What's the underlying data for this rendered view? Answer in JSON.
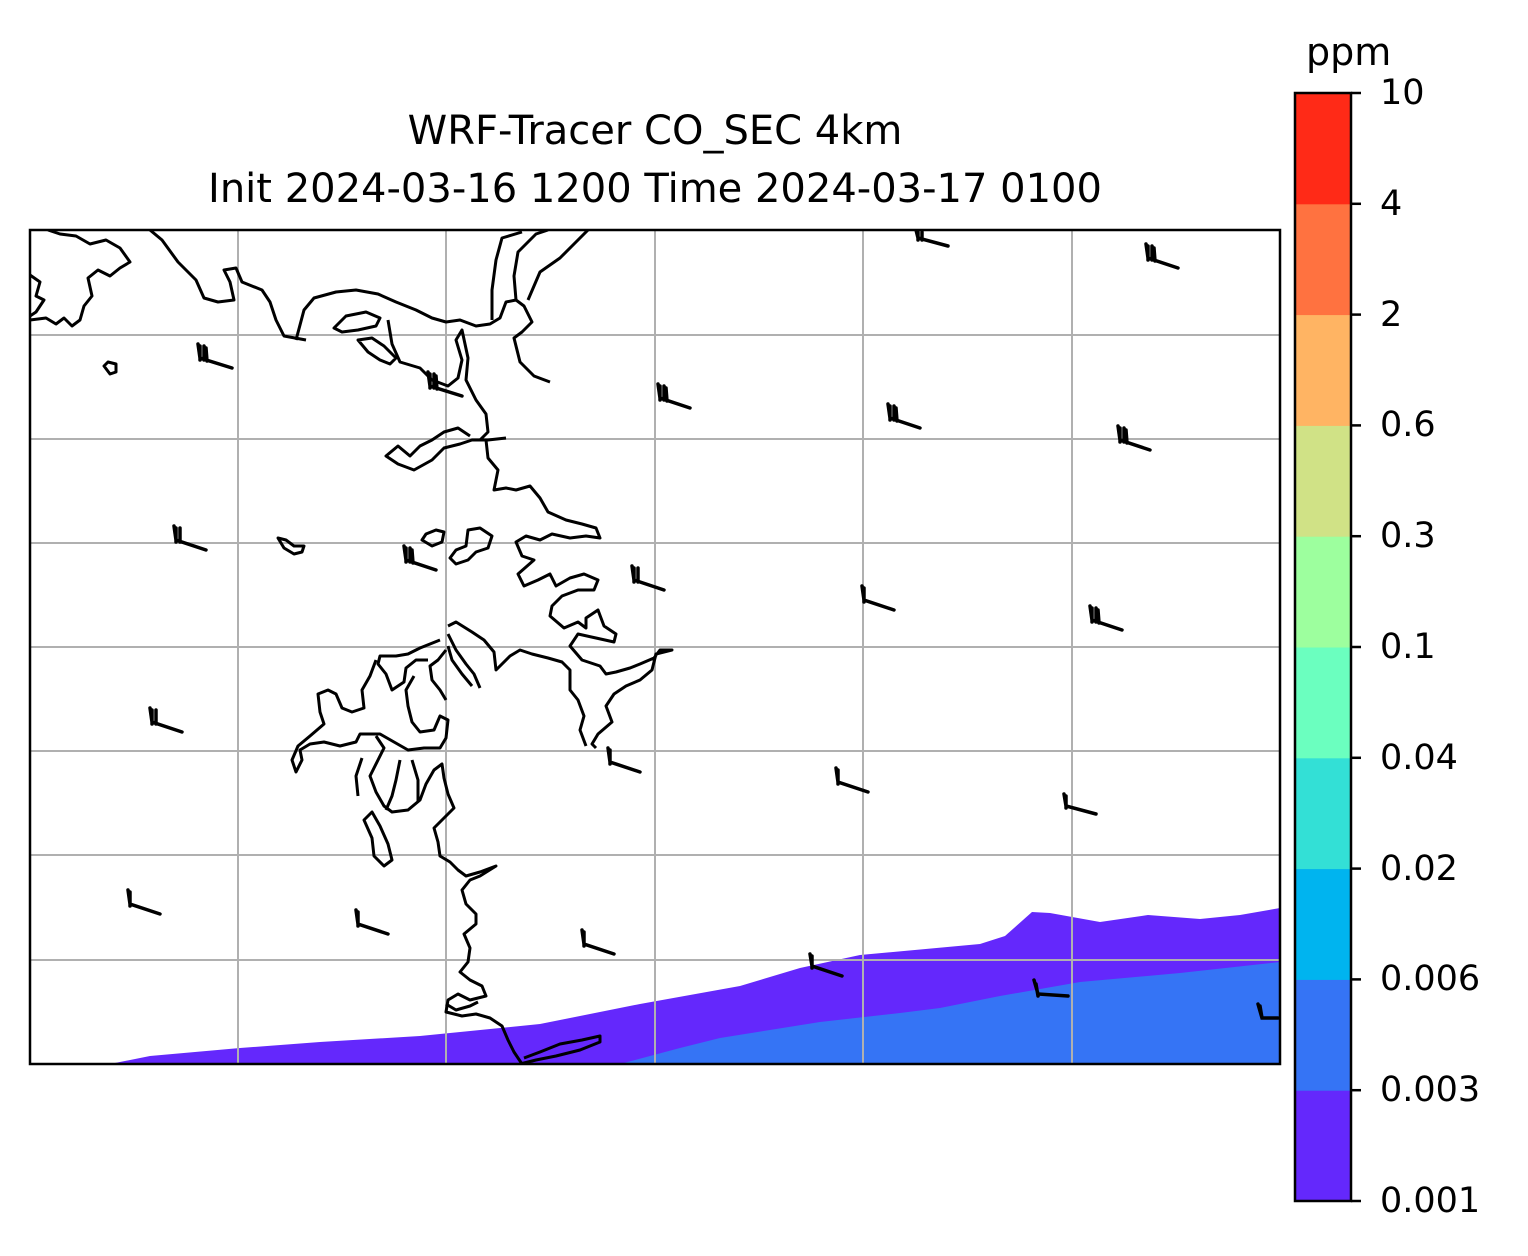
{
  "title": {
    "line1": "WRF-Tracer CO_SEC 4km",
    "line2": "Init 2024-03-16 1200 Time 2024-03-17 0100"
  },
  "colorbar": {
    "unit": "ppm",
    "levels": [
      "0.001",
      "0.003",
      "0.006",
      "0.02",
      "0.04",
      "0.1",
      "0.3",
      "0.6",
      "2",
      "4",
      "10"
    ],
    "colors": [
      "#6428fc",
      "#3574f5",
      "#00b4ef",
      "#33e0d6",
      "#6bffbf",
      "#9dff9e",
      "#d0e286",
      "#ffb463",
      "#ff7240",
      "#ff2a17"
    ]
  },
  "map": {
    "gridlines": true,
    "coastline_color": "#000000",
    "plume_outer_color": "#6428fc",
    "plume_inner_color": "#3574f5"
  }
}
